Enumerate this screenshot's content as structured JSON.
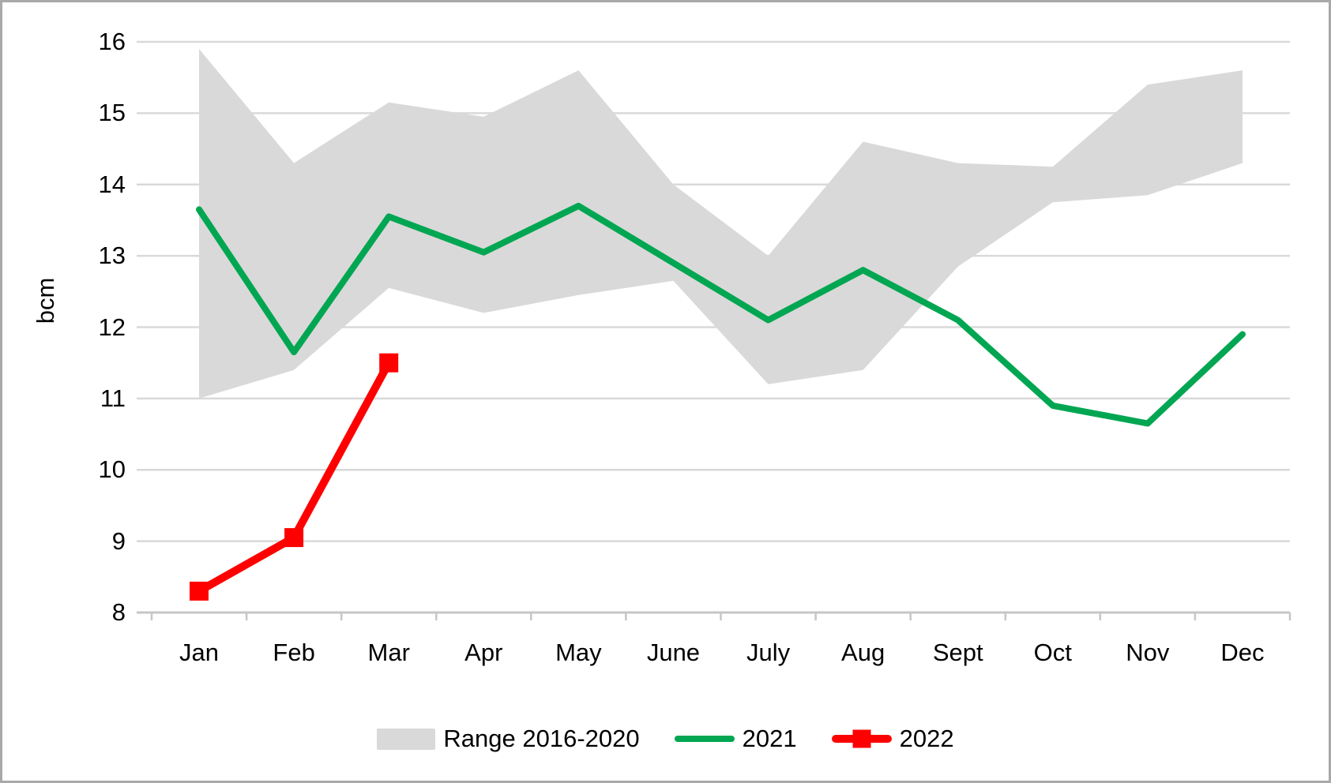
{
  "chart_data": {
    "type": "line",
    "title": "",
    "xlabel": "",
    "ylabel": "bcm",
    "ylim": [
      8,
      16
    ],
    "yticks": [
      16,
      15,
      14,
      13,
      12,
      11,
      10,
      9,
      8
    ],
    "grid": "horizontal",
    "categories": [
      "Jan",
      "Feb",
      "Mar",
      "Apr",
      "May",
      "June",
      "July",
      "Aug",
      "Sept",
      "Oct",
      "Nov",
      "Dec"
    ],
    "series": [
      {
        "name": "Range 2016-2020",
        "type": "band",
        "color": "#d9d9d9",
        "upper": [
          15.9,
          14.3,
          15.15,
          14.95,
          15.6,
          14.0,
          13.0,
          14.6,
          14.3,
          14.25,
          15.4,
          15.6
        ],
        "lower": [
          11.0,
          11.4,
          12.55,
          12.2,
          12.45,
          12.65,
          11.2,
          11.4,
          12.85,
          13.75,
          13.85,
          14.3
        ]
      },
      {
        "name": "2021",
        "type": "line",
        "color": "#00a651",
        "marker": "none",
        "values": [
          13.65,
          11.65,
          13.55,
          13.05,
          13.7,
          12.9,
          12.1,
          12.8,
          12.1,
          10.9,
          10.65,
          11.9
        ]
      },
      {
        "name": "2022",
        "type": "line",
        "color": "#ff0000",
        "marker": "square",
        "values": [
          8.3,
          9.05,
          11.5
        ]
      }
    ],
    "legend": {
      "position": "bottom",
      "entries": [
        "Range 2016-2020",
        "2021",
        "2022"
      ]
    },
    "colors": {
      "background": "#ffffff",
      "frame_border": "#a9a9a9",
      "gridline": "#d9d9d9",
      "axis_line": "#c6c6c6",
      "text": "#000000"
    }
  }
}
